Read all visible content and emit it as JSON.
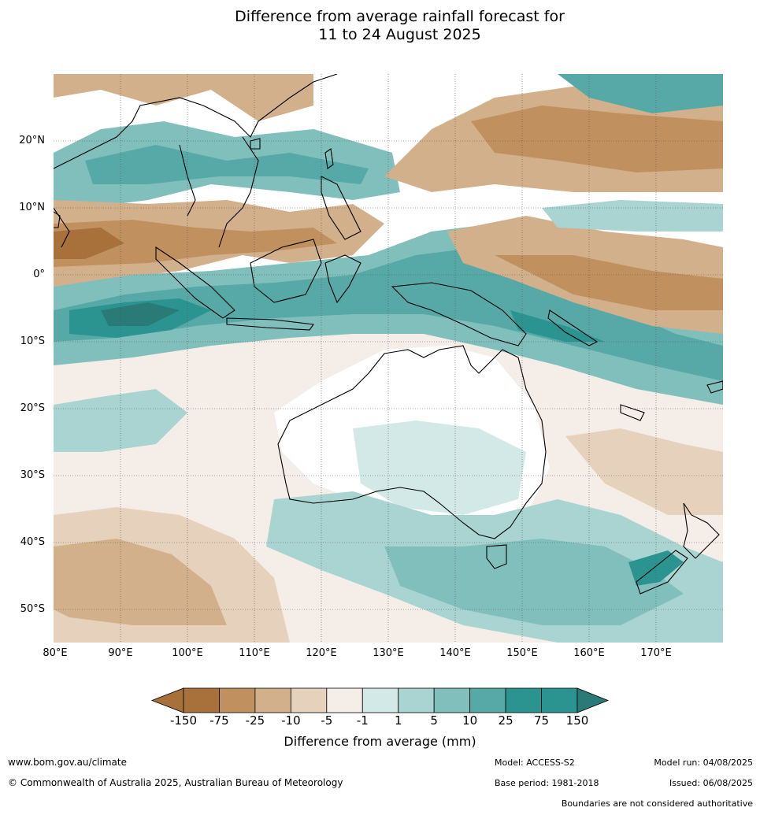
{
  "title_line1": "Difference from average rainfall forecast for",
  "title_line2": "11 to 24 August 2025",
  "lat_labels": [
    "20°N",
    "10°N",
    "0°",
    "10°S",
    "20°S",
    "30°S",
    "40°S",
    "50°S"
  ],
  "lon_labels": [
    "80°E",
    "90°E",
    "100°E",
    "110°E",
    "120°E",
    "130°E",
    "140°E",
    "150°E",
    "160°E",
    "170°E"
  ],
  "colorbar": {
    "ticks": [
      "-150",
      "-75",
      "-25",
      "-10",
      "-5",
      "-1",
      "1",
      "5",
      "10",
      "25",
      "75",
      "150"
    ],
    "colors": [
      "#a8703b",
      "#c0915f",
      "#d3b08c",
      "#e6d1bd",
      "#f5ede7",
      "#ffffff",
      "#d3e9e7",
      "#a9d4d2",
      "#81bfbd",
      "#56a9a7",
      "#2b9490",
      "#2a7a77"
    ],
    "label": "Difference from average (mm)"
  },
  "footer": {
    "website": "www.bom.gov.au/climate",
    "copyright": "© Commonwealth of Australia 2025, Australian Bureau of Meteorology",
    "model": "Model: ACCESS-S2",
    "base_period": "Base period: 1981-2018",
    "model_run": "Model run: 04/08/2025",
    "issued": "Issued: 06/08/2025",
    "disclaimer": "Boundaries are not considered authoritative"
  }
}
